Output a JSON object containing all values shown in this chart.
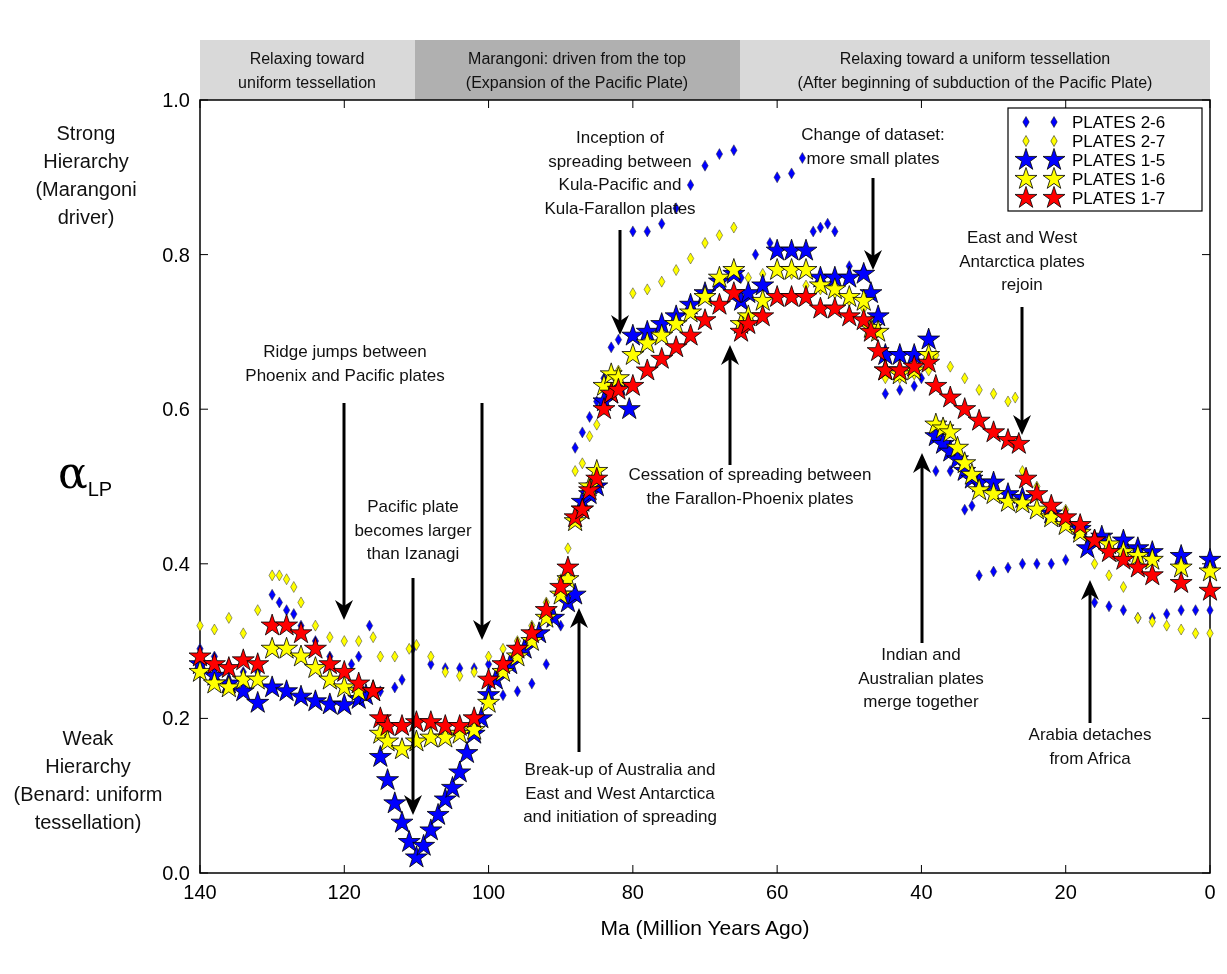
{
  "chart_data": {
    "type": "scatter",
    "xlabel": "Ma (Million Years Ago)",
    "ylabel": "α$_{LP}$",
    "xlim": [
      140,
      0
    ],
    "ylim": [
      0,
      1
    ],
    "xticks": [
      140,
      120,
      100,
      80,
      60,
      40,
      20,
      0
    ],
    "yticks": [
      {
        "value": 0,
        "label": "0.0"
      },
      {
        "value": 0.2,
        "label": "0.2"
      },
      {
        "value": 0.4,
        "label": "0.4"
      },
      {
        "value": 0.6,
        "label": "0.6"
      },
      {
        "value": 0.8,
        "label": "0.8"
      },
      {
        "value": 1,
        "label": "1.0"
      }
    ],
    "grid": false,
    "legend": "top right",
    "annotations": [
      "Ridge jumps between\nPhoenix and Pacific plates",
      "Pacific plate\nbecomes larger\nthan Izanagi",
      "Inception of\nspreading between\nKula-Pacific and\nKula-Farallon plates",
      "Cessation of spreading between\nthe Farallon-Phoenix plates",
      "Change of dataset:\nmore small plates",
      "Break-up of Australia and\nEast and West Antarctica\nand initiation of spreading",
      "East and West\nAntarctica plates\nrejoin",
      "Indian and\nAustralian plates\nmerge together",
      "Arabia detaches\nfrom Africa",
      "Strong\nHierarchy\n(Marangoni\ndriver)",
      "Weak\nHierarchy\n(Benard: uniform\ntessellation)",
      "Relaxing toward\nuniform tessellation",
      "Marangoni: driven from the top\n(Expansion of the Pacific Plate)",
      "Relaxing toward a uniform tessellation\n(After beginning of subduction of the Pacific Plate)"
    ],
    "series": [
      {
        "name": "PLATES 2-6",
        "color": "#0000ff",
        "marker": "diamond",
        "x": [
          140,
          138,
          136,
          134,
          132,
          130,
          129,
          128,
          127,
          126,
          124,
          122,
          119,
          118,
          116.5,
          115,
          113,
          112,
          110.5,
          108,
          106,
          104,
          102,
          100,
          98,
          96,
          94,
          92,
          90,
          88,
          87,
          86,
          85,
          84,
          83,
          82,
          80,
          78,
          76,
          74,
          72,
          70,
          68,
          66,
          65,
          63,
          61,
          60,
          58,
          56.5,
          55,
          54,
          53,
          52,
          50,
          48,
          45,
          43,
          41,
          40,
          38,
          36,
          34,
          33,
          32,
          30,
          28,
          26,
          24,
          22,
          20,
          16,
          14,
          12,
          10,
          8,
          6,
          4,
          2,
          0
        ],
        "values": [
          0.29,
          0.28,
          0.27,
          0.26,
          0.26,
          0.36,
          0.35,
          0.34,
          0.335,
          0.32,
          0.3,
          0.28,
          0.27,
          0.28,
          0.32,
          0.235,
          0.24,
          0.25,
          0.29,
          0.27,
          0.265,
          0.265,
          0.265,
          0.27,
          0.23,
          0.235,
          0.245,
          0.27,
          0.32,
          0.55,
          0.57,
          0.59,
          0.61,
          0.64,
          0.68,
          0.69,
          0.83,
          0.83,
          0.84,
          0.86,
          0.89,
          0.915,
          0.93,
          0.935,
          0.77,
          0.8,
          0.815,
          0.9,
          0.905,
          0.925,
          0.83,
          0.835,
          0.84,
          0.83,
          0.785,
          0.78,
          0.62,
          0.625,
          0.63,
          0.64,
          0.52,
          0.52,
          0.47,
          0.475,
          0.385,
          0.39,
          0.395,
          0.4,
          0.4,
          0.4,
          0.405,
          0.35,
          0.345,
          0.34,
          0.33,
          0.33,
          0.335,
          0.34,
          0.34,
          0.34
        ]
      },
      {
        "name": "PLATES 2-7",
        "color": "#ffff00",
        "marker": "diamond",
        "x": [
          140,
          138,
          136,
          134,
          132,
          130,
          129,
          128,
          127,
          126,
          124,
          122,
          120,
          118,
          116,
          115,
          113,
          111,
          110,
          108,
          106,
          104,
          102,
          100,
          98,
          96,
          94,
          92,
          90,
          89,
          88,
          87,
          86,
          85,
          84,
          82,
          80,
          78,
          76,
          74,
          72,
          70,
          68,
          66,
          64,
          62,
          60,
          58,
          56,
          54,
          52,
          50,
          48,
          46,
          45,
          43,
          41,
          39,
          38,
          36,
          34,
          32,
          30,
          28,
          27,
          26,
          24,
          20,
          16,
          14,
          12,
          10,
          8,
          6,
          4,
          2,
          0
        ],
        "values": [
          0.32,
          0.315,
          0.33,
          0.31,
          0.34,
          0.385,
          0.385,
          0.38,
          0.37,
          0.35,
          0.32,
          0.305,
          0.3,
          0.3,
          0.305,
          0.28,
          0.28,
          0.29,
          0.295,
          0.28,
          0.26,
          0.255,
          0.26,
          0.28,
          0.29,
          0.3,
          0.32,
          0.35,
          0.38,
          0.42,
          0.52,
          0.53,
          0.565,
          0.58,
          0.6,
          0.65,
          0.75,
          0.755,
          0.765,
          0.78,
          0.795,
          0.815,
          0.825,
          0.835,
          0.77,
          0.775,
          0.78,
          0.775,
          0.76,
          0.755,
          0.75,
          0.74,
          0.73,
          0.7,
          0.64,
          0.64,
          0.645,
          0.65,
          0.67,
          0.655,
          0.64,
          0.625,
          0.62,
          0.61,
          0.615,
          0.52,
          0.5,
          0.47,
          0.4,
          0.385,
          0.37,
          0.33,
          0.325,
          0.32,
          0.315,
          0.31,
          0.31
        ]
      },
      {
        "name": "PLATES 1-5",
        "color": "#0000ff",
        "marker": "star",
        "x": [
          140,
          138,
          136,
          134,
          132,
          130,
          128,
          126,
          124,
          122,
          120,
          118,
          117,
          115,
          114,
          113,
          112,
          111,
          110,
          109,
          108,
          107,
          106,
          105,
          104,
          103,
          102,
          101,
          100,
          99,
          97,
          95,
          93,
          91,
          89,
          88,
          87,
          86,
          85,
          84,
          83,
          82,
          80.5,
          80,
          78,
          76,
          74,
          72,
          70,
          68,
          66,
          65,
          64,
          62,
          60,
          58,
          56,
          54,
          52,
          50,
          48,
          47,
          46,
          45,
          43,
          41,
          39,
          38,
          37,
          36,
          35,
          34,
          33,
          32,
          30,
          28,
          26,
          22,
          18,
          17,
          15,
          12,
          10,
          8,
          4,
          0
        ],
        "values": [
          0.27,
          0.255,
          0.245,
          0.235,
          0.22,
          0.24,
          0.235,
          0.228,
          0.222,
          0.218,
          0.217,
          0.225,
          0.23,
          0.15,
          0.12,
          0.09,
          0.065,
          0.04,
          0.02,
          0.035,
          0.055,
          0.075,
          0.095,
          0.11,
          0.13,
          0.155,
          0.18,
          0.2,
          0.23,
          0.25,
          0.27,
          0.29,
          0.31,
          0.33,
          0.35,
          0.36,
          0.48,
          0.49,
          0.5,
          0.61,
          0.62,
          0.63,
          0.6,
          0.695,
          0.7,
          0.71,
          0.72,
          0.735,
          0.75,
          0.765,
          0.775,
          0.74,
          0.75,
          0.76,
          0.805,
          0.805,
          0.805,
          0.77,
          0.77,
          0.77,
          0.775,
          0.75,
          0.72,
          0.67,
          0.67,
          0.67,
          0.69,
          0.565,
          0.555,
          0.545,
          0.535,
          0.52,
          0.51,
          0.505,
          0.505,
          0.49,
          0.485,
          0.465,
          0.445,
          0.42,
          0.435,
          0.43,
          0.42,
          0.415,
          0.41,
          0.405
        ]
      },
      {
        "name": "PLATES 1-6",
        "color": "#ffff00",
        "marker": "star",
        "x": [
          140,
          138,
          136,
          134,
          132,
          130,
          128,
          126,
          124,
          122,
          120,
          118,
          116,
          115,
          114,
          112,
          110,
          108,
          106,
          104,
          102,
          100,
          98,
          96,
          94,
          92,
          90,
          89,
          88,
          87,
          86,
          85,
          84,
          83,
          82,
          80,
          78,
          76,
          74,
          72,
          70,
          68,
          66,
          65,
          64,
          62,
          60,
          58,
          56,
          54,
          52,
          50,
          48,
          47,
          46,
          45,
          43,
          41,
          39,
          38,
          37,
          36,
          35,
          34,
          33,
          32,
          30,
          28,
          26,
          24,
          22,
          20,
          18,
          16,
          14,
          12,
          10,
          8,
          4,
          0
        ],
        "values": [
          0.26,
          0.245,
          0.24,
          0.25,
          0.25,
          0.29,
          0.29,
          0.28,
          0.265,
          0.25,
          0.24,
          0.235,
          0.235,
          0.18,
          0.17,
          0.16,
          0.17,
          0.175,
          0.175,
          0.18,
          0.185,
          0.22,
          0.26,
          0.28,
          0.3,
          0.33,
          0.36,
          0.38,
          0.455,
          0.47,
          0.5,
          0.52,
          0.63,
          0.645,
          0.64,
          0.67,
          0.685,
          0.695,
          0.71,
          0.725,
          0.745,
          0.77,
          0.78,
          0.71,
          0.72,
          0.74,
          0.78,
          0.78,
          0.78,
          0.76,
          0.755,
          0.745,
          0.74,
          0.705,
          0.7,
          0.65,
          0.645,
          0.65,
          0.67,
          0.58,
          0.575,
          0.57,
          0.55,
          0.53,
          0.515,
          0.495,
          0.49,
          0.48,
          0.478,
          0.47,
          0.46,
          0.45,
          0.44,
          0.43,
          0.425,
          0.415,
          0.41,
          0.405,
          0.395,
          0.39
        ]
      },
      {
        "name": "PLATES 1-7",
        "color": "#ff0000",
        "marker": "star",
        "x": [
          140,
          138,
          136,
          134,
          132,
          130,
          128,
          126,
          124,
          122,
          120,
          118,
          116,
          115,
          114,
          112,
          110,
          108,
          106,
          104,
          102,
          100,
          98,
          96,
          94,
          92,
          90,
          89,
          88,
          87,
          86,
          85,
          84,
          83,
          82,
          80,
          78,
          76,
          74,
          72,
          70,
          68,
          66,
          65,
          64,
          62,
          60,
          58,
          56,
          54,
          52,
          50,
          48,
          47,
          46,
          45,
          43,
          41,
          39,
          38,
          36,
          34,
          32,
          30,
          28,
          26.5,
          25.5,
          24,
          22,
          20,
          18,
          16,
          14,
          12,
          10,
          8,
          4,
          0
        ],
        "values": [
          0.28,
          0.27,
          0.265,
          0.275,
          0.27,
          0.32,
          0.32,
          0.31,
          0.29,
          0.27,
          0.26,
          0.245,
          0.235,
          0.2,
          0.19,
          0.19,
          0.195,
          0.195,
          0.19,
          0.19,
          0.2,
          0.25,
          0.27,
          0.29,
          0.31,
          0.34,
          0.37,
          0.395,
          0.46,
          0.47,
          0.495,
          0.51,
          0.6,
          0.62,
          0.625,
          0.63,
          0.65,
          0.665,
          0.68,
          0.695,
          0.715,
          0.735,
          0.75,
          0.7,
          0.71,
          0.72,
          0.745,
          0.745,
          0.745,
          0.73,
          0.73,
          0.72,
          0.715,
          0.7,
          0.675,
          0.65,
          0.65,
          0.655,
          0.66,
          0.63,
          0.615,
          0.6,
          0.585,
          0.57,
          0.56,
          0.555,
          0.51,
          0.49,
          0.475,
          0.46,
          0.45,
          0.43,
          0.415,
          0.405,
          0.395,
          0.385,
          0.375,
          0.365
        ]
      }
    ]
  }
}
